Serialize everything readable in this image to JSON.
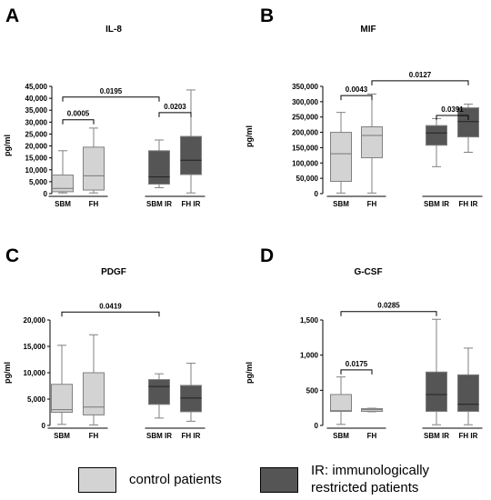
{
  "chart_data": [
    {
      "panel": "A",
      "type": "box",
      "title": "IL-8",
      "ylabel": "pg/ml",
      "ylim": [
        0,
        45000
      ],
      "yticks": [
        "0",
        "5,000",
        "10,000",
        "15,000",
        "20,000",
        "25,000",
        "30,000",
        "35,000",
        "40,000",
        "45,000"
      ],
      "categories": [
        "SBM",
        "FH",
        "SBM IR",
        "FH IR"
      ],
      "boxes": [
        {
          "label": "SBM",
          "group": "control",
          "min": 300,
          "q1": 800,
          "median": 2200,
          "q3": 7800,
          "max": 18000
        },
        {
          "label": "FH",
          "group": "control",
          "min": 300,
          "q1": 1500,
          "median": 7500,
          "q3": 19500,
          "max": 27500
        },
        {
          "label": "SBM IR",
          "group": "ir",
          "min": 2500,
          "q1": 4000,
          "median": 7000,
          "q3": 18000,
          "max": 22500
        },
        {
          "label": "FH IR",
          "group": "ir",
          "min": 300,
          "q1": 8000,
          "median": 14000,
          "q3": 24000,
          "max": 43500
        }
      ],
      "brackets": [
        {
          "from": 0,
          "to": 1,
          "y": 31000,
          "label": "0.0005"
        },
        {
          "from": 0,
          "to": 2,
          "y": 40500,
          "label": "0.0195"
        },
        {
          "from": 2,
          "to": 3,
          "y": 34000,
          "label": "0.0203"
        }
      ]
    },
    {
      "panel": "B",
      "type": "box",
      "title": "MIF",
      "ylabel": "pg/ml",
      "ylim": [
        0,
        350000
      ],
      "yticks": [
        "0",
        "50,000",
        "100,000",
        "150,000",
        "200,000",
        "250,000",
        "300,000",
        "350,000"
      ],
      "categories": [
        "SBM",
        "FH",
        "SBM IR",
        "FH IR"
      ],
      "boxes": [
        {
          "label": "SBM",
          "group": "control",
          "min": 2000,
          "q1": 40000,
          "median": 130000,
          "q3": 200000,
          "max": 265000
        },
        {
          "label": "FH",
          "group": "control",
          "min": 2000,
          "q1": 117000,
          "median": 190000,
          "q3": 218000,
          "max": 325000
        },
        {
          "label": "SBM IR",
          "group": "ir",
          "min": 88000,
          "q1": 158000,
          "median": 198000,
          "q3": 222000,
          "max": 245000
        },
        {
          "label": "FH IR",
          "group": "ir",
          "min": 135000,
          "q1": 185000,
          "median": 235000,
          "q3": 280000,
          "max": 292000
        }
      ],
      "brackets": [
        {
          "from": 0,
          "to": 1,
          "y": 320000,
          "label": "0.0043"
        },
        {
          "from": 1,
          "to": 3,
          "y": 368000,
          "label": "0.0127"
        },
        {
          "from": 2,
          "to": 3,
          "y": 255000,
          "label": "0.0391"
        }
      ]
    },
    {
      "panel": "C",
      "type": "box",
      "title": "PDGF",
      "ylabel": "pg/ml",
      "ylim": [
        0,
        20000
      ],
      "yticks": [
        "0",
        "5,000",
        "10,000",
        "15,000",
        "20,000"
      ],
      "categories": [
        "SBM",
        "FH",
        "SBM IR",
        "FH IR"
      ],
      "boxes": [
        {
          "label": "SBM",
          "group": "control",
          "min": 200,
          "q1": 2500,
          "median": 3000,
          "q3": 7800,
          "max": 15200
        },
        {
          "label": "FH",
          "group": "control",
          "min": 100,
          "q1": 2000,
          "median": 3500,
          "q3": 10000,
          "max": 17200
        },
        {
          "label": "SBM IR",
          "group": "ir",
          "min": 1400,
          "q1": 4000,
          "median": 7400,
          "q3": 8700,
          "max": 9800
        },
        {
          "label": "FH IR",
          "group": "ir",
          "min": 800,
          "q1": 2600,
          "median": 5200,
          "q3": 7600,
          "max": 11800
        }
      ],
      "brackets": [
        {
          "from": 0,
          "to": 2,
          "y": 21500,
          "label": "0.0419"
        }
      ]
    },
    {
      "panel": "D",
      "type": "box",
      "title": "G-CSF",
      "ylabel": "pg/ml",
      "ylim": [
        0,
        1500
      ],
      "yticks": [
        "0",
        "500",
        "1,000",
        "1,500"
      ],
      "categories": [
        "SBM",
        "FH",
        "SBM IR",
        "FH IR"
      ],
      "boxes": [
        {
          "label": "SBM",
          "group": "control",
          "min": 15,
          "q1": 200,
          "median": 210,
          "q3": 440,
          "max": 690
        },
        {
          "label": "FH",
          "group": "control",
          "min": 195,
          "q1": 200,
          "median": 225,
          "q3": 240,
          "max": 245
        },
        {
          "label": "SBM IR",
          "group": "ir",
          "min": 10,
          "q1": 200,
          "median": 440,
          "q3": 760,
          "max": 1510
        },
        {
          "label": "FH IR",
          "group": "ir",
          "min": 10,
          "q1": 200,
          "median": 300,
          "q3": 720,
          "max": 1100
        }
      ],
      "brackets": [
        {
          "from": 0,
          "to": 1,
          "y": 790,
          "label": "0.0175"
        },
        {
          "from": 0,
          "to": 2,
          "y": 1620,
          "label": "0.0285"
        }
      ]
    }
  ],
  "colors": {
    "control_fill": "#d3d3d3",
    "ir_fill": "#555555",
    "stroke": "#000000",
    "whisker": "#808080"
  },
  "legend": {
    "control_label": "control patients",
    "ir_label_line1": "IR: immunologically",
    "ir_label_line2": "restricted patients"
  }
}
